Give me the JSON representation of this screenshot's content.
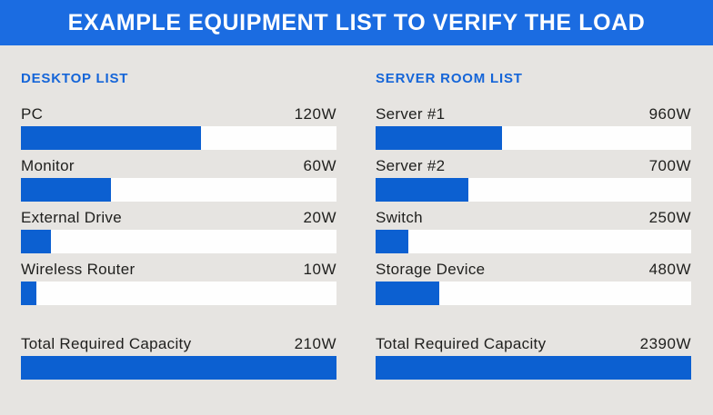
{
  "banner": {
    "title": "EXAMPLE EQUIPMENT LIST TO VERIFY THE LOAD"
  },
  "colors": {
    "banner": "#1b6ce1",
    "bar": "#0c60d1",
    "heading": "#1565d8",
    "background": "#e6e4e1",
    "track": "#fefefe",
    "text": "#1f1f1d"
  },
  "lists": [
    {
      "header": "DESKTOP LIST",
      "items": [
        {
          "label": "PC",
          "value": 120,
          "value_label": "120W"
        },
        {
          "label": "Monitor",
          "value": 60,
          "value_label": "60W"
        },
        {
          "label": "External Drive",
          "value": 20,
          "value_label": "20W"
        },
        {
          "label": "Wireless Router",
          "value": 10,
          "value_label": "10W"
        }
      ],
      "total": {
        "label": "Total Required Capacity",
        "value": 210,
        "value_label": "210W"
      }
    },
    {
      "header": "SERVER ROOM LIST",
      "items": [
        {
          "label": "Server #1",
          "value": 960,
          "value_label": "960W"
        },
        {
          "label": "Server #2",
          "value": 700,
          "value_label": "700W"
        },
        {
          "label": "Switch",
          "value": 250,
          "value_label": "250W"
        },
        {
          "label": "Storage Device",
          "value": 480,
          "value_label": "480W"
        }
      ],
      "total": {
        "label": "Total Required Capacity",
        "value": 2390,
        "value_label": "2390W"
      }
    }
  ],
  "chart_data": [
    {
      "type": "bar",
      "orientation": "horizontal",
      "title": "DESKTOP LIST",
      "categories": [
        "PC",
        "Monitor",
        "External Drive",
        "Wireless Router",
        "Total Required Capacity"
      ],
      "values": [
        120,
        60,
        20,
        10,
        210
      ],
      "unit": "W",
      "xlabel": "",
      "ylabel": "",
      "xlim": [
        0,
        210
      ],
      "grid": false,
      "legend": false,
      "bar_color": "#0c60d1",
      "track_color": "#fefefe",
      "data_labels": [
        "120W",
        "60W",
        "20W",
        "10W",
        "210W"
      ]
    },
    {
      "type": "bar",
      "orientation": "horizontal",
      "title": "SERVER ROOM LIST",
      "categories": [
        "Server #1",
        "Server #2",
        "Switch",
        "Storage Device",
        "Total Required Capacity"
      ],
      "values": [
        960,
        700,
        250,
        480,
        2390
      ],
      "unit": "W",
      "xlabel": "",
      "ylabel": "",
      "xlim": [
        0,
        2390
      ],
      "grid": false,
      "legend": false,
      "bar_color": "#0c60d1",
      "track_color": "#fefefe",
      "data_labels": [
        "960W",
        "700W",
        "250W",
        "480W",
        "2390W"
      ]
    }
  ]
}
